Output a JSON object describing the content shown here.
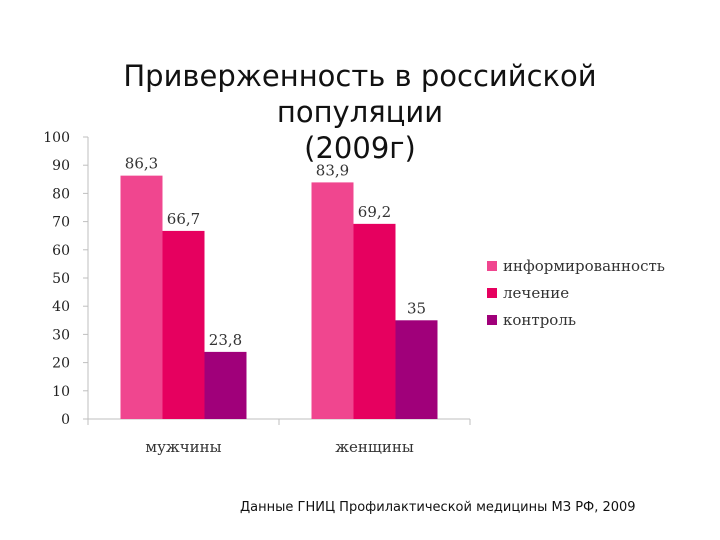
{
  "title": {
    "line1": "Приверженность в российской популяции",
    "line2": "(2009г)"
  },
  "source": "Данные ГНИЦ Профилактической медицины МЗ РФ, 2009",
  "chart_data": {
    "type": "bar",
    "categories": [
      "мужчины",
      "женщины"
    ],
    "series": [
      {
        "name": "информированность",
        "values": [
          86.3,
          83.9
        ],
        "labels": [
          "86,3",
          "83,9"
        ],
        "color": "#f0468f"
      },
      {
        "name": "лечение",
        "values": [
          66.7,
          69.2
        ],
        "labels": [
          "66,7",
          "69,2"
        ],
        "color": "#e6005f"
      },
      {
        "name": "контроль",
        "values": [
          23.8,
          35
        ],
        "labels": [
          "23,8",
          "35"
        ],
        "color": "#a0007a"
      }
    ],
    "ylim": [
      0,
      100
    ],
    "yticks": [
      "0",
      "10",
      "20",
      "30",
      "40",
      "50",
      "60",
      "70",
      "80",
      "90",
      "100"
    ],
    "legend_position": "right",
    "grid": false
  }
}
